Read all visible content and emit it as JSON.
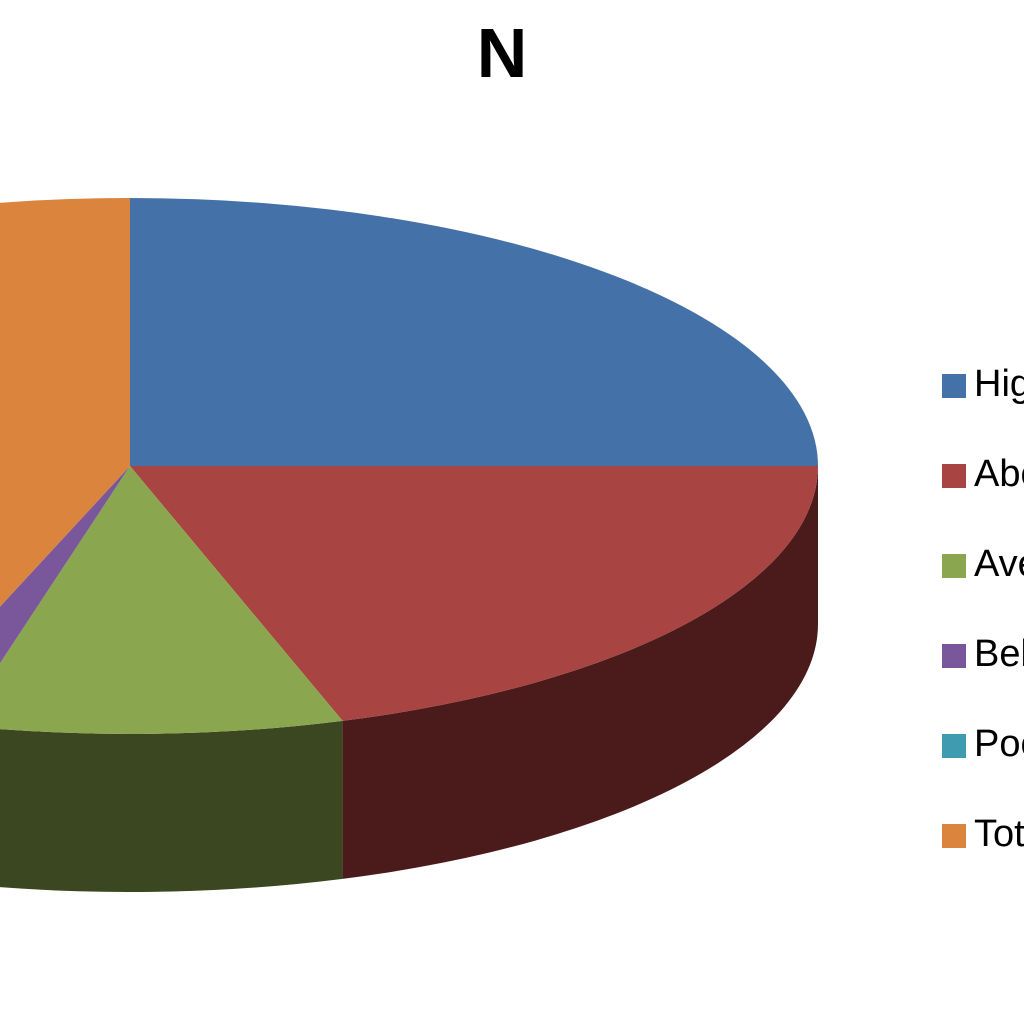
{
  "chart_data": {
    "type": "pie",
    "title": "N",
    "legend_position": "right",
    "three_d": true,
    "categories": [
      "High",
      "Above",
      "Average",
      "Below",
      "Poor",
      "Total"
    ],
    "values": [
      25,
      20,
      9,
      1.5,
      0,
      44.5
    ],
    "colors": [
      "#4571A9",
      "#A84442",
      "#8AA64E",
      "#7A579A",
      "#3F9BB0",
      "#DB843D"
    ],
    "side_colors": [
      "#253E5E",
      "#4A1B1A",
      "#3A4720",
      "#3A2A4E",
      "#1F4D57",
      "#8A4F22"
    ]
  }
}
